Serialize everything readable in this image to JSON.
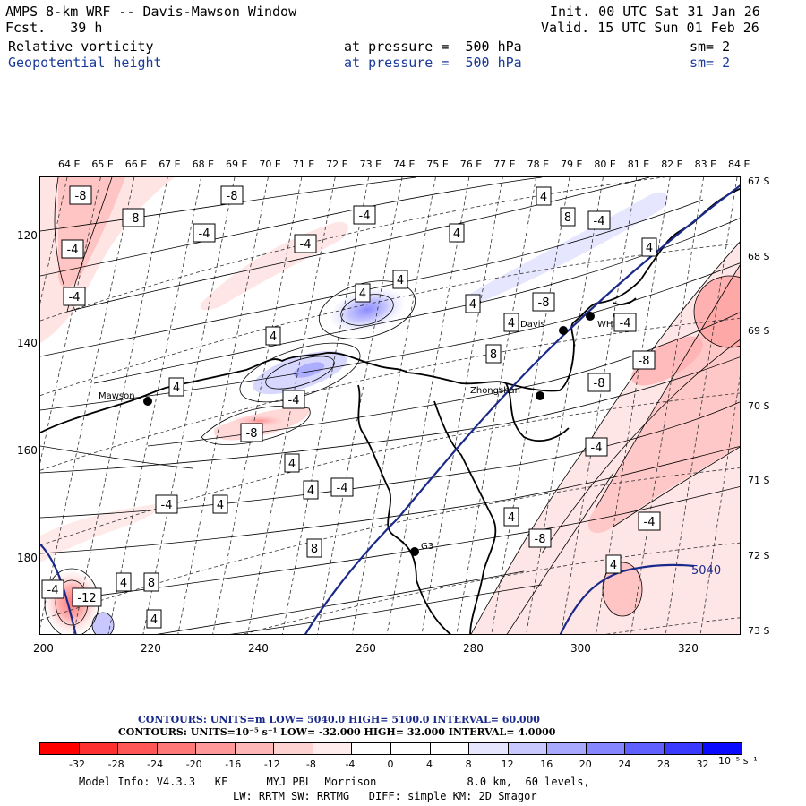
{
  "header": {
    "title": "AMPS 8-km WRF -- Davis-Mawson Window",
    "forecast": "Fcst.   39 h",
    "init": "Init. 00 UTC Sat 31 Jan 26",
    "valid": "Valid. 15 UTC Sun 01 Feb 26",
    "field1": {
      "name": "Relative vorticity",
      "level": "at pressure =  500 hPa",
      "sm": "sm= 2"
    },
    "field2": {
      "name": "Geopotential height",
      "level": "at pressure =  500 hPa",
      "sm": "sm= 2"
    }
  },
  "axes": {
    "top_lon": [
      "64 E",
      "65 E",
      "66 E",
      "67 E",
      "68 E",
      "69 E",
      "70 E",
      "71 E",
      "72 E",
      "73 E",
      "74 E",
      "75 E",
      "76 E",
      "77 E",
      "78 E",
      "79 E",
      "80 E",
      "81 E",
      "82 E",
      "83 E",
      "84 E"
    ],
    "right_lat": [
      "67 S",
      "68 S",
      "69 S",
      "70 S",
      "71 S",
      "72 S",
      "73 S"
    ],
    "bottom_x": [
      "200",
      "220",
      "240",
      "260",
      "280",
      "300",
      "320"
    ],
    "left_y": [
      "120",
      "140",
      "160",
      "180"
    ]
  },
  "stations": [
    {
      "name": "Mawson"
    },
    {
      "name": "Davis"
    },
    {
      "name": "WHP"
    },
    {
      "name": "Zhongshan"
    },
    {
      "name": "G3"
    }
  ],
  "contour_labels": [
    "-8",
    "-8",
    "-8",
    "-4",
    "-4",
    "-4",
    "-4",
    "-4",
    "4",
    "4",
    "8",
    "-4",
    "4",
    "4",
    "4",
    "4",
    "4",
    "-4",
    "-8",
    "4",
    "8",
    "-4",
    "4",
    "4",
    "4",
    "-4",
    "4",
    "8",
    "-4",
    "-12",
    "4",
    "8",
    "-4",
    "-8",
    "-8",
    "-4",
    "-4",
    "-8",
    "4",
    "4",
    "-8",
    "4",
    "4",
    "8",
    "-4",
    "-4",
    "-8"
  ],
  "height_label": "5040",
  "contour_info": {
    "line1": "CONTOURS:  UNITS=m  LOW=  5040.0      HIGH=  5100.0       INTERVAL=   60.000",
    "line2": "CONTOURS:  UNITS=10⁻⁵ s⁻¹  LOW=  -32.000        HIGH=  32.000        INTERVAL=   4.0000"
  },
  "colorbar": {
    "labels": [
      "-32",
      "-28",
      "-24",
      "-20",
      "-16",
      "-12",
      "-8",
      "-4",
      "0",
      "4",
      "8",
      "12",
      "16",
      "20",
      "24",
      "28",
      "32"
    ],
    "unit": "10⁻⁵ s⁻¹",
    "colors": [
      "#ff0000",
      "#ff3030",
      "#ff5656",
      "#ff7878",
      "#ff9898",
      "#ffb6b6",
      "#ffd2d2",
      "#ffecec",
      "#ffffff",
      "#ffffff",
      "#e6e6ff",
      "#c8c8ff",
      "#a8a8ff",
      "#8686ff",
      "#6060ff",
      "#3a3aff",
      "#0a0aff"
    ]
  },
  "model_info": {
    "line1": "Model Info: V4.3.3   KF      MYJ PBL  Morrison              8.0 km,  60 levels,",
    "line2": "LW: RRTM SW: RRTMG   DIFF: simple KM: 2D Smagor"
  }
}
